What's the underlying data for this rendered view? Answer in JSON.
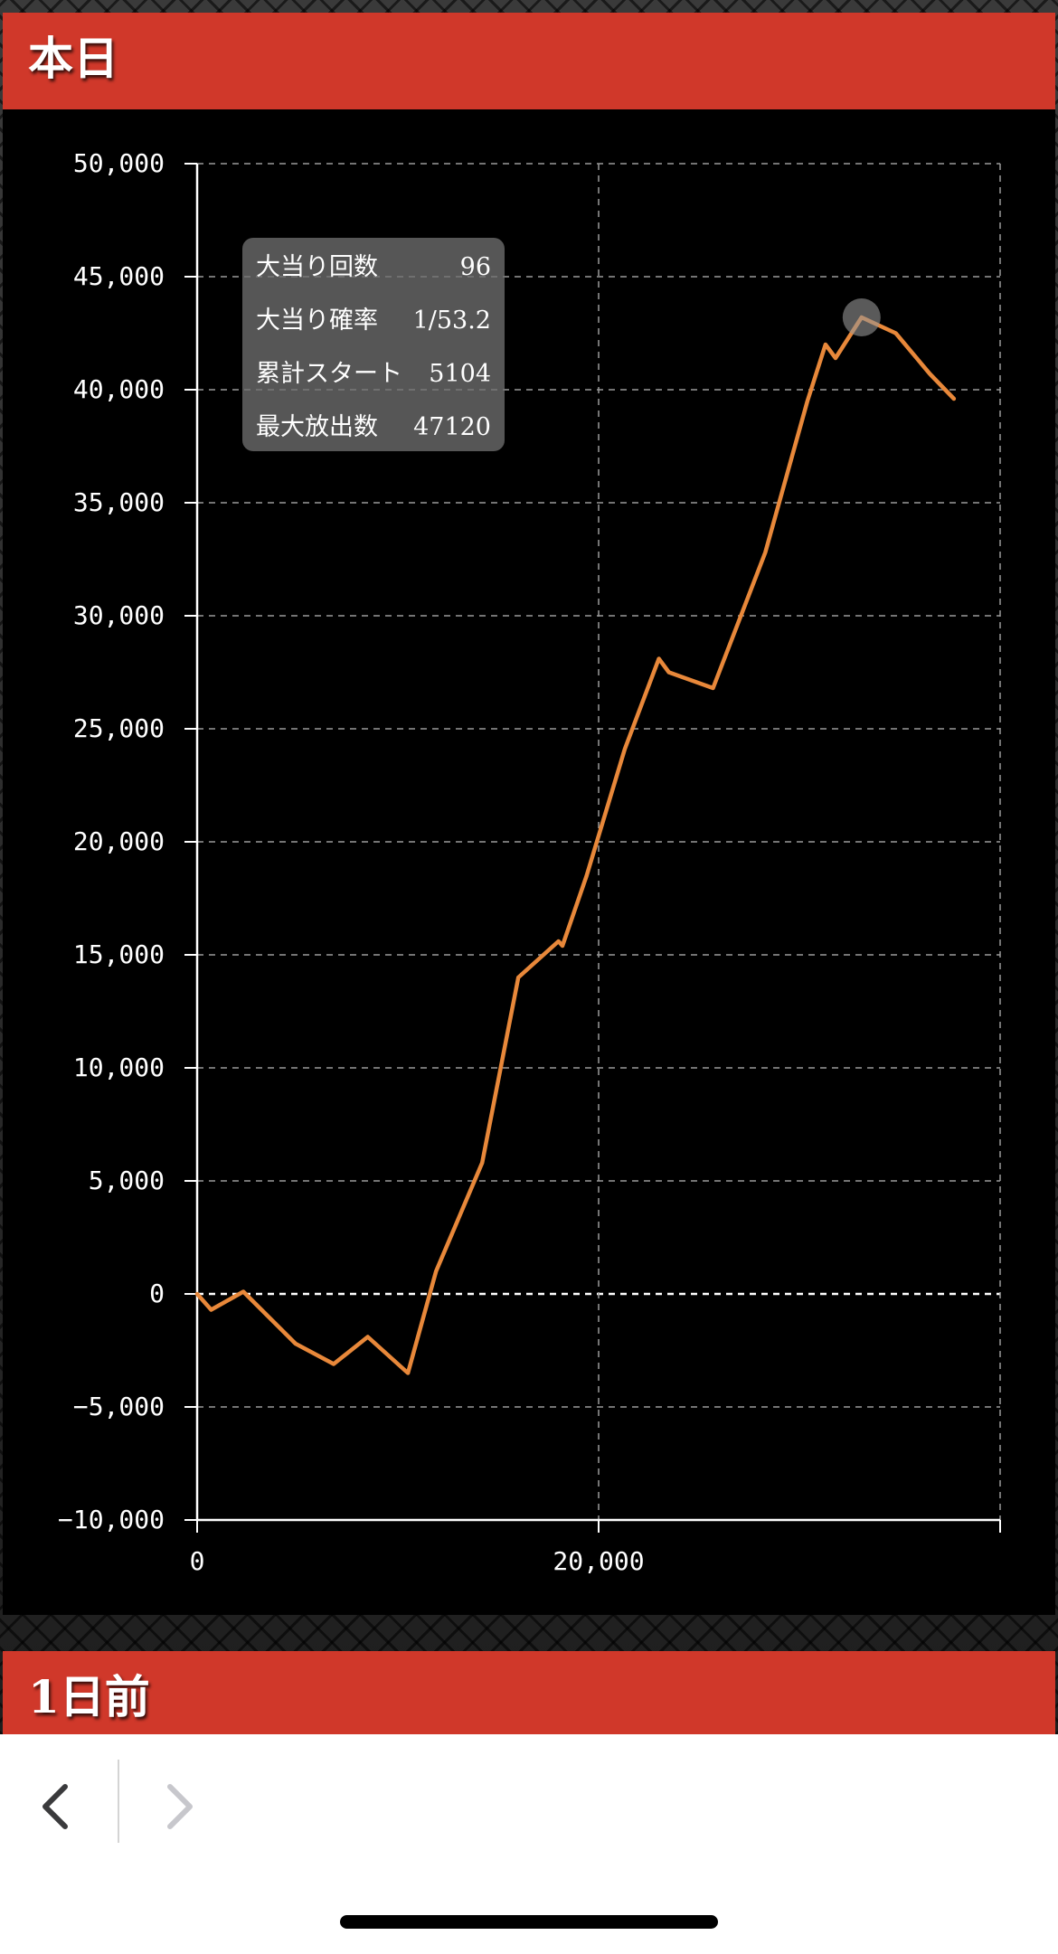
{
  "sections": {
    "today_title": "本日",
    "prev_title": "1日前"
  },
  "tooltip": {
    "rows": [
      {
        "label": "大当り回数",
        "value": "96"
      },
      {
        "label": "大当り確率",
        "value": "1/53.2"
      },
      {
        "label": "累計スタート",
        "value": "5104"
      },
      {
        "label": "最大放出数",
        "value": "47120"
      }
    ]
  },
  "colors": {
    "header_bg": "#d0382a",
    "line": "#e8883a",
    "grid": "#9a9a9a",
    "axis": "#ffffff"
  },
  "nav": {
    "back_icon": "chevron-left-icon",
    "forward_icon": "chevron-right-icon"
  },
  "chart_data": {
    "type": "line",
    "title": "",
    "xlabel": "",
    "ylabel": "",
    "xlim": [
      0,
      40000
    ],
    "ylim": [
      -10000,
      50000
    ],
    "x_ticks": [
      0,
      20000,
      40000
    ],
    "x_tick_labels": [
      "0",
      "20,000",
      ""
    ],
    "y_ticks": [
      -10000,
      -5000,
      0,
      5000,
      10000,
      15000,
      20000,
      25000,
      30000,
      35000,
      40000,
      45000,
      50000
    ],
    "y_tick_labels": [
      "−10,000",
      "−5,000",
      "0",
      "5,000",
      "10,000",
      "15,000",
      "20,000",
      "25,000",
      "30,000",
      "35,000",
      "40,000",
      "45,000",
      "50,000"
    ],
    "grid": true,
    "series": [
      {
        "x": [
          0,
          700,
          2300,
          4900,
          6800,
          8500,
          10500,
          11900,
          14200,
          16000,
          18000,
          18200,
          19400,
          21300,
          23000,
          23500,
          25700,
          28300,
          30400,
          31300,
          31800,
          33100,
          34800,
          36500,
          37700
        ],
        "y": [
          0,
          -700,
          100,
          -2200,
          -3100,
          -1900,
          -3500,
          1000,
          5800,
          14000,
          15600,
          15400,
          18500,
          24100,
          28100,
          27500,
          26800,
          32800,
          39500,
          42000,
          41400,
          43200,
          42500,
          40700,
          39600
        ]
      }
    ],
    "highlight_point": {
      "x": 33100,
      "y": 43200
    }
  }
}
